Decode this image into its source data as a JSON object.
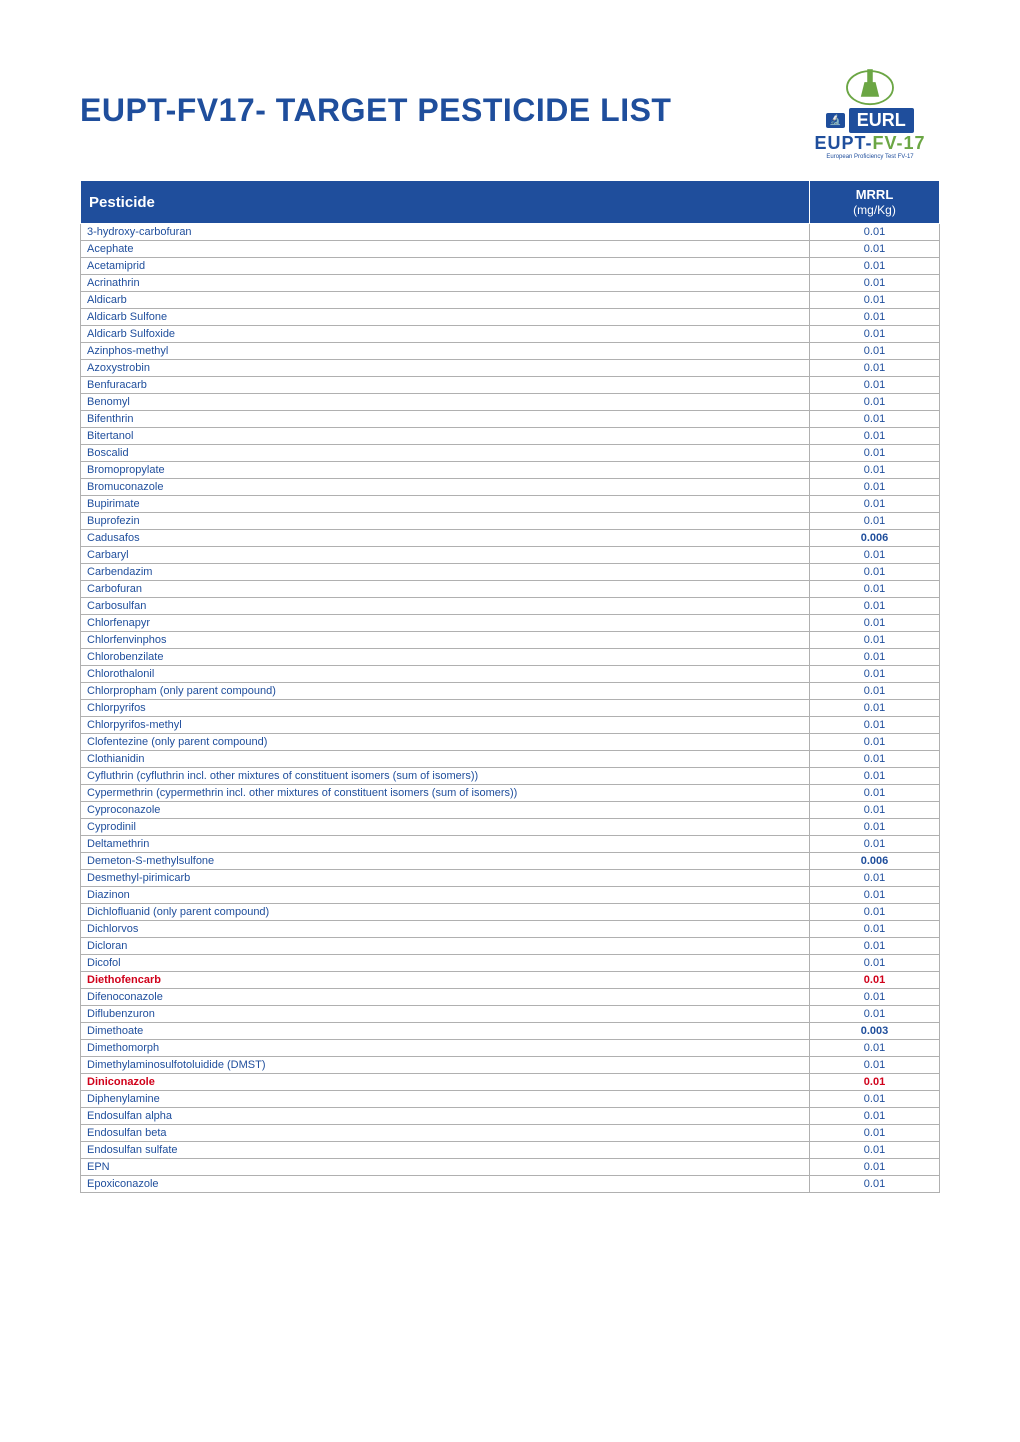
{
  "title": "EUPT-FV17- TARGET PESTICIDE LIST",
  "logo": {
    "eurl_badge": "🔬",
    "eurl_text": "EURL",
    "subtext_eupt": "EUPT-",
    "subtext_fv17": "FV-17",
    "tiny": "European Proficiency Test FV-17"
  },
  "table": {
    "header_pesticide": "Pesticide",
    "header_mrrl": "MRRL",
    "header_unit": "(mg/Kg)",
    "name_col_color": "#1f4e9c",
    "value_col_color": "#1f4e9c",
    "header_bg": "#1f4e9c",
    "header_fg": "#ffffff",
    "border_color": "#b0b0b0",
    "red_color": "#d0021b",
    "font_size_row": 11,
    "rows": [
      {
        "name": "3-hydroxy-carbofuran",
        "value": "0.01"
      },
      {
        "name": "Acephate",
        "value": "0.01"
      },
      {
        "name": "Acetamiprid",
        "value": "0.01"
      },
      {
        "name": "Acrinathrin",
        "value": "0.01"
      },
      {
        "name": "Aldicarb",
        "value": "0.01"
      },
      {
        "name": "Aldicarb Sulfone",
        "value": "0.01"
      },
      {
        "name": "Aldicarb Sulfoxide",
        "value": "0.01"
      },
      {
        "name": "Azinphos-methyl",
        "value": "0.01"
      },
      {
        "name": "Azoxystrobin",
        "value": "0.01"
      },
      {
        "name": "Benfuracarb",
        "value": "0.01"
      },
      {
        "name": "Benomyl",
        "value": "0.01"
      },
      {
        "name": "Bifenthrin",
        "value": "0.01"
      },
      {
        "name": "Bitertanol",
        "value": "0.01"
      },
      {
        "name": "Boscalid",
        "value": "0.01"
      },
      {
        "name": "Bromopropylate",
        "value": "0.01"
      },
      {
        "name": "Bromuconazole",
        "value": "0.01"
      },
      {
        "name": "Bupirimate",
        "value": "0.01"
      },
      {
        "name": "Buprofezin",
        "value": "0.01"
      },
      {
        "name": "Cadusafos",
        "value": "0.006",
        "bold": true
      },
      {
        "name": "Carbaryl",
        "value": "0.01"
      },
      {
        "name": "Carbendazim",
        "value": "0.01"
      },
      {
        "name": "Carbofuran",
        "value": "0.01"
      },
      {
        "name": "Carbosulfan",
        "value": "0.01"
      },
      {
        "name": "Chlorfenapyr",
        "value": "0.01"
      },
      {
        "name": "Chlorfenvinphos",
        "value": "0.01"
      },
      {
        "name": "Chlorobenzilate",
        "value": "0.01"
      },
      {
        "name": "Chlorothalonil",
        "value": "0.01"
      },
      {
        "name": "Chlorpropham (only parent compound)",
        "value": "0.01"
      },
      {
        "name": "Chlorpyrifos",
        "value": "0.01"
      },
      {
        "name": "Chlorpyrifos-methyl",
        "value": "0.01"
      },
      {
        "name": "Clofentezine (only parent compound)",
        "value": "0.01"
      },
      {
        "name": "Clothianidin",
        "value": "0.01"
      },
      {
        "name": "Cyfluthrin (cyfluthrin incl. other mixtures of constituent isomers (sum of isomers))",
        "value": "0.01"
      },
      {
        "name": "Cypermethrin (cypermethrin incl. other mixtures of constituent isomers (sum of isomers))",
        "value": "0.01"
      },
      {
        "name": "Cyproconazole",
        "value": "0.01"
      },
      {
        "name": "Cyprodinil",
        "value": "0.01"
      },
      {
        "name": "Deltamethrin",
        "value": "0.01"
      },
      {
        "name": "Demeton-S-methylsulfone",
        "value": "0.006",
        "bold": true
      },
      {
        "name": "Desmethyl-pirimicarb",
        "value": "0.01"
      },
      {
        "name": "Diazinon",
        "value": "0.01"
      },
      {
        "name": "Dichlofluanid (only parent compound)",
        "value": "0.01"
      },
      {
        "name": "Dichlorvos",
        "value": "0.01"
      },
      {
        "name": "Dicloran",
        "value": "0.01"
      },
      {
        "name": "Dicofol",
        "value": "0.01"
      },
      {
        "name": "Diethofencarb",
        "value": "0.01",
        "red": true
      },
      {
        "name": "Difenoconazole",
        "value": "0.01"
      },
      {
        "name": "Diflubenzuron",
        "value": "0.01"
      },
      {
        "name": "Dimethoate",
        "value": "0.003",
        "bold": true
      },
      {
        "name": "Dimethomorph",
        "value": "0.01"
      },
      {
        "name": "Dimethylaminosulfotoluidide (DMST)",
        "value": "0.01"
      },
      {
        "name": "Diniconazole",
        "value": "0.01",
        "red": true
      },
      {
        "name": "Diphenylamine",
        "value": "0.01"
      },
      {
        "name": "Endosulfan alpha",
        "value": "0.01"
      },
      {
        "name": "Endosulfan beta",
        "value": "0.01"
      },
      {
        "name": "Endosulfan sulfate",
        "value": "0.01"
      },
      {
        "name": "EPN",
        "value": "0.01"
      },
      {
        "name": "Epoxiconazole",
        "value": "0.01"
      }
    ]
  }
}
